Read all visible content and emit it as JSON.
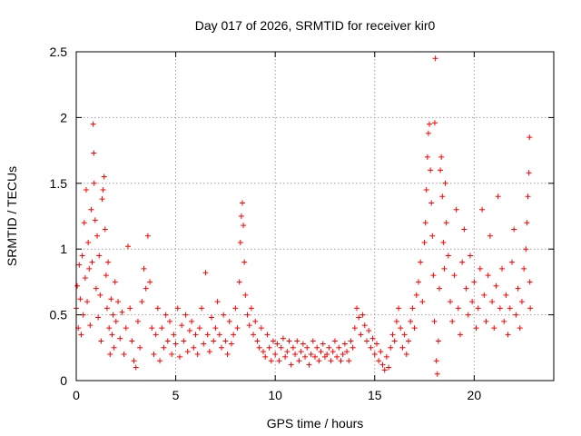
{
  "chart_data": {
    "type": "scatter",
    "title": "Day 017 of 2026, SRMTID for receiver kir0",
    "xlabel": "GPS time / hours",
    "ylabel": "SRMTID / TECUs",
    "xlim": [
      0,
      24
    ],
    "ylim": [
      0,
      2.5
    ],
    "x_ticks": [
      0,
      5,
      10,
      15,
      20
    ],
    "x_tick_labels": [
      "0",
      "5",
      "10",
      "15",
      "20"
    ],
    "y_ticks": [
      0,
      0.5,
      1,
      1.5,
      2,
      2.5
    ],
    "y_tick_labels": [
      "0",
      "0.5",
      "1",
      "1.5",
      "2",
      "2.5"
    ],
    "grid": true,
    "marker": "+",
    "color": "#ff0000",
    "series": [
      {
        "name": "SRMTID",
        "points": [
          [
            0.0,
            0.55
          ],
          [
            0.05,
            0.72
          ],
          [
            0.1,
            0.4
          ],
          [
            0.15,
            0.88
          ],
          [
            0.2,
            0.62
          ],
          [
            0.25,
            0.35
          ],
          [
            0.3,
            0.95
          ],
          [
            0.35,
            0.5
          ],
          [
            0.4,
            1.2
          ],
          [
            0.45,
            0.78
          ],
          [
            0.5,
            1.45
          ],
          [
            0.55,
            0.6
          ],
          [
            0.6,
            1.05
          ],
          [
            0.65,
            0.85
          ],
          [
            0.7,
            0.42
          ],
          [
            0.75,
            1.3
          ],
          [
            0.8,
            0.9
          ],
          [
            0.85,
            1.95
          ],
          [
            0.88,
            1.73
          ],
          [
            0.9,
            1.5
          ],
          [
            0.95,
            1.22
          ],
          [
            1.0,
            0.7
          ],
          [
            1.05,
            1.1
          ],
          [
            1.1,
            0.48
          ],
          [
            1.15,
            0.95
          ],
          [
            1.2,
            0.65
          ],
          [
            1.25,
            0.3
          ],
          [
            1.3,
            1.38
          ],
          [
            1.35,
            1.45
          ],
          [
            1.4,
            1.55
          ],
          [
            1.45,
            1.15
          ],
          [
            1.5,
            0.8
          ],
          [
            1.55,
            0.55
          ],
          [
            1.6,
            0.9
          ],
          [
            1.65,
            0.4
          ],
          [
            1.7,
            0.2
          ],
          [
            1.75,
            0.62
          ],
          [
            1.8,
            0.35
          ],
          [
            1.85,
            0.5
          ],
          [
            1.9,
            0.25
          ],
          [
            1.95,
            0.75
          ],
          [
            2.0,
            0.45
          ],
          [
            2.1,
            0.6
          ],
          [
            2.2,
            0.32
          ],
          [
            2.3,
            0.52
          ],
          [
            2.4,
            0.2
          ],
          [
            2.5,
            0.4
          ],
          [
            2.6,
            1.02
          ],
          [
            2.7,
            0.55
          ],
          [
            2.8,
            0.3
          ],
          [
            2.9,
            0.15
          ],
          [
            3.0,
            0.1
          ],
          [
            3.1,
            0.45
          ],
          [
            3.2,
            0.25
          ],
          [
            3.3,
            0.6
          ],
          [
            3.4,
            0.85
          ],
          [
            3.5,
            0.7
          ],
          [
            3.6,
            1.1
          ],
          [
            3.7,
            0.75
          ],
          [
            3.8,
            0.4
          ],
          [
            3.9,
            0.2
          ],
          [
            4.0,
            0.35
          ],
          [
            4.1,
            0.55
          ],
          [
            4.2,
            0.15
          ],
          [
            4.3,
            0.4
          ],
          [
            4.4,
            0.25
          ],
          [
            4.5,
            0.5
          ],
          [
            4.6,
            0.3
          ],
          [
            4.7,
            0.45
          ],
          [
            4.8,
            0.2
          ],
          [
            4.9,
            0.35
          ],
          [
            5.0,
            0.28
          ],
          [
            5.1,
            0.55
          ],
          [
            5.2,
            0.18
          ],
          [
            5.3,
            0.42
          ],
          [
            5.4,
            0.3
          ],
          [
            5.5,
            0.5
          ],
          [
            5.6,
            0.22
          ],
          [
            5.7,
            0.38
          ],
          [
            5.8,
            0.45
          ],
          [
            5.9,
            0.25
          ],
          [
            6.0,
            0.35
          ],
          [
            6.1,
            0.2
          ],
          [
            6.2,
            0.4
          ],
          [
            6.3,
            0.55
          ],
          [
            6.4,
            0.28
          ],
          [
            6.5,
            0.82
          ],
          [
            6.6,
            0.35
          ],
          [
            6.7,
            0.22
          ],
          [
            6.8,
            0.48
          ],
          [
            6.9,
            0.3
          ],
          [
            7.0,
            0.4
          ],
          [
            7.1,
            0.6
          ],
          [
            7.2,
            0.35
          ],
          [
            7.3,
            0.25
          ],
          [
            7.4,
            0.5
          ],
          [
            7.5,
            0.3
          ],
          [
            7.6,
            0.2
          ],
          [
            7.7,
            0.45
          ],
          [
            7.8,
            0.28
          ],
          [
            7.9,
            0.35
          ],
          [
            8.0,
            0.55
          ],
          [
            8.1,
            0.4
          ],
          [
            8.2,
            0.75
          ],
          [
            8.25,
            1.05
          ],
          [
            8.3,
            1.25
          ],
          [
            8.35,
            1.35
          ],
          [
            8.4,
            1.18
          ],
          [
            8.45,
            0.9
          ],
          [
            8.5,
            0.65
          ],
          [
            8.6,
            0.5
          ],
          [
            8.7,
            0.42
          ],
          [
            8.8,
            0.55
          ],
          [
            8.9,
            0.35
          ],
          [
            9.0,
            0.45
          ],
          [
            9.1,
            0.3
          ],
          [
            9.2,
            0.25
          ],
          [
            9.3,
            0.4
          ],
          [
            9.4,
            0.22
          ],
          [
            9.5,
            0.18
          ],
          [
            9.6,
            0.35
          ],
          [
            9.7,
            0.25
          ],
          [
            9.8,
            0.15
          ],
          [
            9.9,
            0.3
          ],
          [
            10.0,
            0.2
          ],
          [
            10.1,
            0.28
          ],
          [
            10.2,
            0.15
          ],
          [
            10.3,
            0.25
          ],
          [
            10.4,
            0.32
          ],
          [
            10.5,
            0.18
          ],
          [
            10.6,
            0.22
          ],
          [
            10.7,
            0.3
          ],
          [
            10.8,
            0.12
          ],
          [
            10.9,
            0.25
          ],
          [
            11.0,
            0.2
          ],
          [
            11.1,
            0.3
          ],
          [
            11.2,
            0.15
          ],
          [
            11.3,
            0.22
          ],
          [
            11.4,
            0.28
          ],
          [
            11.5,
            0.18
          ],
          [
            11.6,
            0.25
          ],
          [
            11.7,
            0.12
          ],
          [
            11.8,
            0.2
          ],
          [
            11.9,
            0.3
          ],
          [
            12.0,
            0.18
          ],
          [
            12.1,
            0.25
          ],
          [
            12.2,
            0.15
          ],
          [
            12.3,
            0.22
          ],
          [
            12.4,
            0.28
          ],
          [
            12.5,
            0.18
          ],
          [
            12.6,
            0.2
          ],
          [
            12.7,
            0.25
          ],
          [
            12.8,
            0.15
          ],
          [
            12.9,
            0.22
          ],
          [
            13.0,
            0.3
          ],
          [
            13.1,
            0.18
          ],
          [
            13.2,
            0.25
          ],
          [
            13.3,
            0.15
          ],
          [
            13.4,
            0.2
          ],
          [
            13.5,
            0.28
          ],
          [
            13.6,
            0.22
          ],
          [
            13.7,
            0.15
          ],
          [
            13.8,
            0.3
          ],
          [
            13.9,
            0.25
          ],
          [
            14.0,
            0.4
          ],
          [
            14.1,
            0.55
          ],
          [
            14.2,
            0.48
          ],
          [
            14.3,
            0.35
          ],
          [
            14.4,
            0.5
          ],
          [
            14.5,
            0.42
          ],
          [
            14.6,
            0.3
          ],
          [
            14.7,
            0.38
          ],
          [
            14.8,
            0.25
          ],
          [
            14.9,
            0.32
          ],
          [
            15.0,
            0.2
          ],
          [
            15.1,
            0.28
          ],
          [
            15.2,
            0.15
          ],
          [
            15.3,
            0.22
          ],
          [
            15.4,
            0.12
          ],
          [
            15.5,
            0.08
          ],
          [
            15.6,
            0.18
          ],
          [
            15.7,
            0.1
          ],
          [
            15.8,
            0.25
          ],
          [
            15.9,
            0.35
          ],
          [
            16.0,
            0.3
          ],
          [
            16.1,
            0.45
          ],
          [
            16.2,
            0.55
          ],
          [
            16.3,
            0.4
          ],
          [
            16.4,
            0.25
          ],
          [
            16.5,
            0.35
          ],
          [
            16.6,
            0.2
          ],
          [
            16.7,
            0.3
          ],
          [
            16.8,
            0.45
          ],
          [
            16.9,
            0.55
          ],
          [
            17.0,
            0.4
          ],
          [
            17.1,
            0.65
          ],
          [
            17.2,
            0.75
          ],
          [
            17.3,
            0.9
          ],
          [
            17.4,
            0.6
          ],
          [
            17.5,
            1.05
          ],
          [
            17.55,
            1.2
          ],
          [
            17.6,
            1.45
          ],
          [
            17.65,
            1.7
          ],
          [
            17.7,
            1.88
          ],
          [
            17.75,
            1.95
          ],
          [
            17.8,
            1.6
          ],
          [
            17.85,
            1.35
          ],
          [
            17.9,
            1.1
          ],
          [
            17.95,
            0.8
          ],
          [
            18.0,
            0.45
          ],
          [
            18.02,
            1.96
          ],
          [
            18.05,
            2.45
          ],
          [
            18.1,
            0.15
          ],
          [
            18.15,
            0.05
          ],
          [
            18.2,
            0.3
          ],
          [
            18.25,
            0.7
          ],
          [
            18.3,
            1.6
          ],
          [
            18.35,
            1.7
          ],
          [
            18.4,
            1.4
          ],
          [
            18.45,
            1.05
          ],
          [
            18.5,
            0.85
          ],
          [
            18.55,
            1.5
          ],
          [
            18.6,
            1.2
          ],
          [
            18.7,
            0.95
          ],
          [
            18.8,
            0.6
          ],
          [
            18.9,
            0.45
          ],
          [
            19.0,
            0.8
          ],
          [
            19.1,
            1.3
          ],
          [
            19.2,
            0.55
          ],
          [
            19.3,
            0.35
          ],
          [
            19.4,
            0.9
          ],
          [
            19.5,
            1.15
          ],
          [
            19.6,
            0.7
          ],
          [
            19.7,
            0.5
          ],
          [
            19.8,
            0.95
          ],
          [
            19.9,
            0.6
          ],
          [
            20.0,
            0.75
          ],
          [
            20.1,
            0.4
          ],
          [
            20.2,
            0.55
          ],
          [
            20.3,
            0.85
          ],
          [
            20.4,
            1.3
          ],
          [
            20.5,
            0.65
          ],
          [
            20.6,
            0.45
          ],
          [
            20.7,
            0.8
          ],
          [
            20.8,
            1.1
          ],
          [
            20.9,
            0.6
          ],
          [
            21.0,
            0.4
          ],
          [
            21.1,
            0.72
          ],
          [
            21.2,
            1.4
          ],
          [
            21.3,
            0.55
          ],
          [
            21.4,
            0.85
          ],
          [
            21.5,
            0.45
          ],
          [
            21.6,
            0.65
          ],
          [
            21.7,
            0.35
          ],
          [
            21.8,
            0.55
          ],
          [
            21.9,
            0.9
          ],
          [
            22.0,
            1.15
          ],
          [
            22.1,
            0.5
          ],
          [
            22.2,
            0.7
          ],
          [
            22.3,
            0.4
          ],
          [
            22.4,
            0.6
          ],
          [
            22.5,
            0.85
          ],
          [
            22.6,
            1.0
          ],
          [
            22.65,
            1.2
          ],
          [
            22.7,
            1.4
          ],
          [
            22.75,
            1.58
          ],
          [
            22.78,
            1.85
          ],
          [
            22.8,
            0.75
          ],
          [
            22.82,
            0.55
          ]
        ]
      }
    ]
  }
}
